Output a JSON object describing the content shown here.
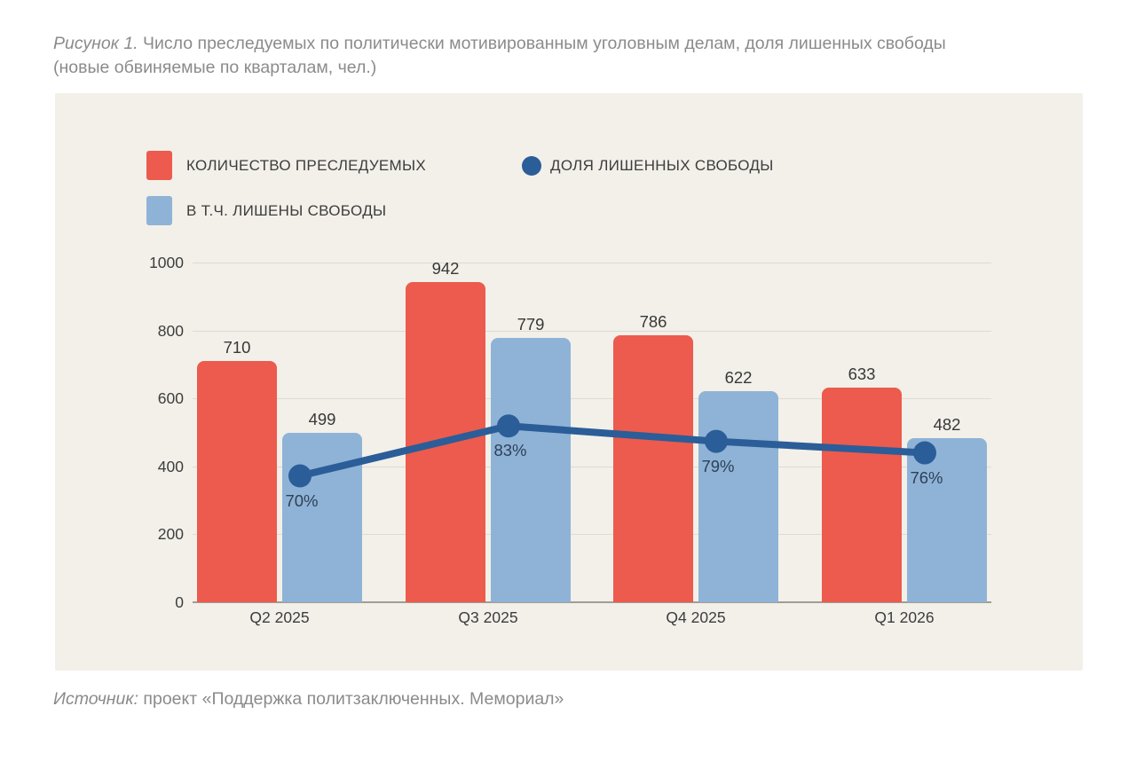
{
  "figure": {
    "caption_prefix": "Рисунок 1.",
    "caption_rest": "Число преследуемых по политически мотивированным уголовным делам, доля лишенных свободы",
    "caption_line2": "(новые обвиняемые по кварталам, чел.)",
    "source_prefix": "Источник:",
    "source_text": "проект «Поддержка политзаключенных. Мемориал»"
  },
  "legend": {
    "prosecuted": "КОЛИЧЕСТВО ПРЕСЛЕДУЕМЫХ",
    "deprived": "В Т.Ч. ЛИШЕНЫ СВОБОДЫ",
    "share": "ДОЛЯ ЛИШЕННЫХ СВОБОДЫ"
  },
  "colors": {
    "panel_background": "#f2f0e9",
    "page_background": "#ffffff",
    "bar_prosecuted": "#ec5b4d",
    "bar_deprived": "#8fb3d7",
    "line_share": "#2b5d98",
    "caption_text": "#8b8b8b",
    "axis_text": "#3d3d3d",
    "percent_text": "#2e4057"
  },
  "chart_data": {
    "type": "bar",
    "categories": [
      "Q2 2025",
      "Q3 2025",
      "Q4 2025",
      "Q1 2026"
    ],
    "series": [
      {
        "name": "КОЛИЧЕСТВО ПРЕСЛЕДУЕМЫХ",
        "type": "bar",
        "color": "#ec5b4d",
        "values": [
          710,
          942,
          786,
          633
        ]
      },
      {
        "name": "В Т.Ч. ЛИШЕНЫ СВОБОДЫ",
        "type": "bar",
        "color": "#8fb3d7",
        "values": [
          499,
          779,
          622,
          482
        ]
      },
      {
        "name": "ДОЛЯ ЛИШЕННЫХ СВОБОДЫ",
        "type": "line",
        "color": "#2b5d98",
        "values_percent": [
          70,
          83,
          79,
          76
        ],
        "point_labels": [
          "70%",
          "83%",
          "79%",
          "76%"
        ]
      }
    ],
    "title": "Число преследуемых по политически мотивированным уголовным делам, доля лишенных свободы (новые обвиняемые по кварталам, чел.)",
    "xlabel": "",
    "ylabel": "",
    "ylim": [
      0,
      1000
    ],
    "yticks": [
      0,
      200,
      400,
      600,
      800,
      1000
    ],
    "grid": true,
    "legend_position": "top-left",
    "layout": {
      "line_on_primary_axis_slope": 11.3,
      "line_on_primary_axis_intercept": -419
    }
  }
}
